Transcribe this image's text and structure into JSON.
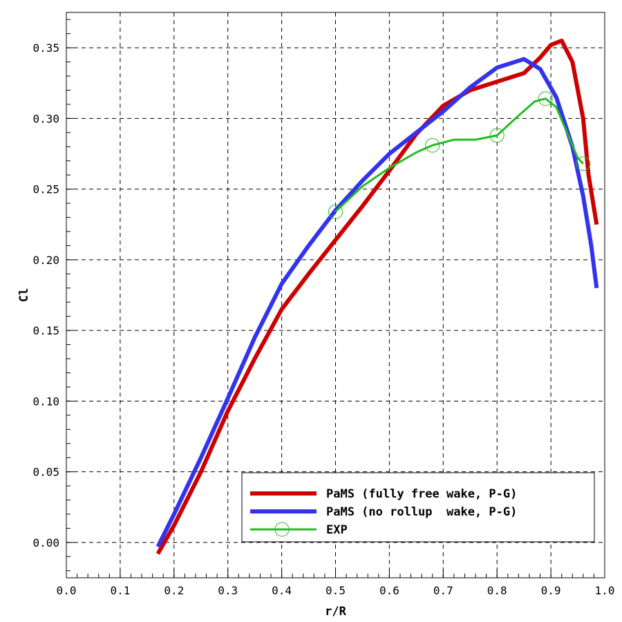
{
  "chart_data": {
    "type": "line",
    "xlabel": "r/R",
    "ylabel": "Cl",
    "xlim": [
      0.0,
      1.0
    ],
    "ylim": [
      -0.025,
      0.375
    ],
    "xticks": [
      "0.0",
      "0.1",
      "0.2",
      "0.3",
      "0.4",
      "0.5",
      "0.6",
      "0.7",
      "0.8",
      "0.9",
      "1.0"
    ],
    "yticks": [
      "0.00",
      "0.05",
      "0.10",
      "0.15",
      "0.20",
      "0.25",
      "0.30",
      "0.35"
    ],
    "grid": true,
    "legend_position": "bottom-right",
    "series": [
      {
        "name": "PaMS (fully free wake, P-G)",
        "color": "#cc0000",
        "style": "thick-line",
        "x": [
          0.17,
          0.2,
          0.25,
          0.3,
          0.35,
          0.4,
          0.45,
          0.5,
          0.55,
          0.6,
          0.65,
          0.7,
          0.75,
          0.8,
          0.85,
          0.88,
          0.9,
          0.92,
          0.94,
          0.96,
          0.97,
          0.985
        ],
        "y": [
          -0.008,
          0.012,
          0.05,
          0.093,
          0.13,
          0.165,
          0.19,
          0.214,
          0.238,
          0.263,
          0.289,
          0.309,
          0.32,
          0.326,
          0.332,
          0.343,
          0.352,
          0.355,
          0.34,
          0.3,
          0.26,
          0.225
        ]
      },
      {
        "name": "PaMS (no rollup  wake, P-G)",
        "color": "#3333ee",
        "style": "thick-line",
        "x": [
          0.17,
          0.2,
          0.25,
          0.3,
          0.35,
          0.4,
          0.45,
          0.5,
          0.55,
          0.6,
          0.65,
          0.7,
          0.75,
          0.8,
          0.85,
          0.88,
          0.91,
          0.94,
          0.96,
          0.975,
          0.985
        ],
        "y": [
          -0.003,
          0.02,
          0.06,
          0.102,
          0.145,
          0.183,
          0.21,
          0.235,
          0.256,
          0.275,
          0.29,
          0.305,
          0.322,
          0.336,
          0.342,
          0.335,
          0.315,
          0.28,
          0.245,
          0.21,
          0.18
        ]
      },
      {
        "name": "EXP",
        "color": "#22bb22",
        "style": "thin-line-circles",
        "x": [
          0.5,
          0.55,
          0.6,
          0.65,
          0.68,
          0.72,
          0.76,
          0.8,
          0.84,
          0.87,
          0.89,
          0.91,
          0.93,
          0.95,
          0.96
        ],
        "y": [
          0.234,
          0.252,
          0.265,
          0.276,
          0.281,
          0.285,
          0.285,
          0.288,
          0.302,
          0.312,
          0.314,
          0.308,
          0.29,
          0.272,
          0.268
        ],
        "markers_x": [
          0.5,
          0.68,
          0.8,
          0.89,
          0.96
        ],
        "markers_y": [
          0.234,
          0.281,
          0.288,
          0.314,
          0.268
        ]
      }
    ]
  }
}
